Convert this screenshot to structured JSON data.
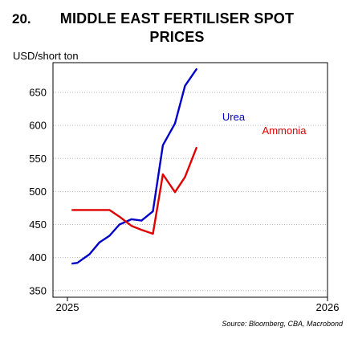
{
  "figure": {
    "number": "20.",
    "title_line1": "MIDDLE EAST FERTILISER SPOT",
    "title_line2": "PRICES",
    "source": "Source: Bloomberg, CBA, Macrobond"
  },
  "chart_data": {
    "type": "line",
    "title": "MIDDLE EAST FERTILISER SPOT PRICES",
    "ylabel": "USD/short ton",
    "xlabel": "",
    "ylim": [
      340,
      695
    ],
    "yticks": [
      350,
      400,
      450,
      500,
      550,
      600,
      650
    ],
    "xlim": [
      "2025-01-01",
      "2026-01-01"
    ],
    "xticks": [
      {
        "value": "2025-01-01",
        "label": "2025"
      },
      {
        "value": "2026-01-01",
        "label": "2026"
      }
    ],
    "grid": true,
    "series": [
      {
        "name": "Urea",
        "color": "#0000c8",
        "x": [
          "2025-01-08",
          "2025-01-15",
          "2025-02-01",
          "2025-02-15",
          "2025-03-01",
          "2025-03-15",
          "2025-04-01",
          "2025-04-15",
          "2025-05-01",
          "2025-05-15",
          "2025-06-01",
          "2025-06-15",
          "2025-07-01",
          "2025-07-15",
          "2025-08-01",
          "2025-08-15"
        ],
        "values": [
          391,
          392,
          405,
          423,
          433,
          450,
          458,
          456,
          470,
          570,
          603,
          660,
          685,
          null,
          null,
          null
        ]
      },
      {
        "name": "Ammonia",
        "color": "#e00000",
        "x": [
          "2025-01-08",
          "2025-01-15",
          "2025-02-01",
          "2025-02-15",
          "2025-03-01",
          "2025-03-15",
          "2025-04-01",
          "2025-04-15",
          "2025-05-01",
          "2025-05-15",
          "2025-06-01",
          "2025-06-15",
          "2025-07-01"
        ],
        "values": [
          472,
          472,
          472,
          472,
          472,
          462,
          448,
          442,
          436,
          526,
          499,
          522,
          566
        ]
      }
    ]
  }
}
